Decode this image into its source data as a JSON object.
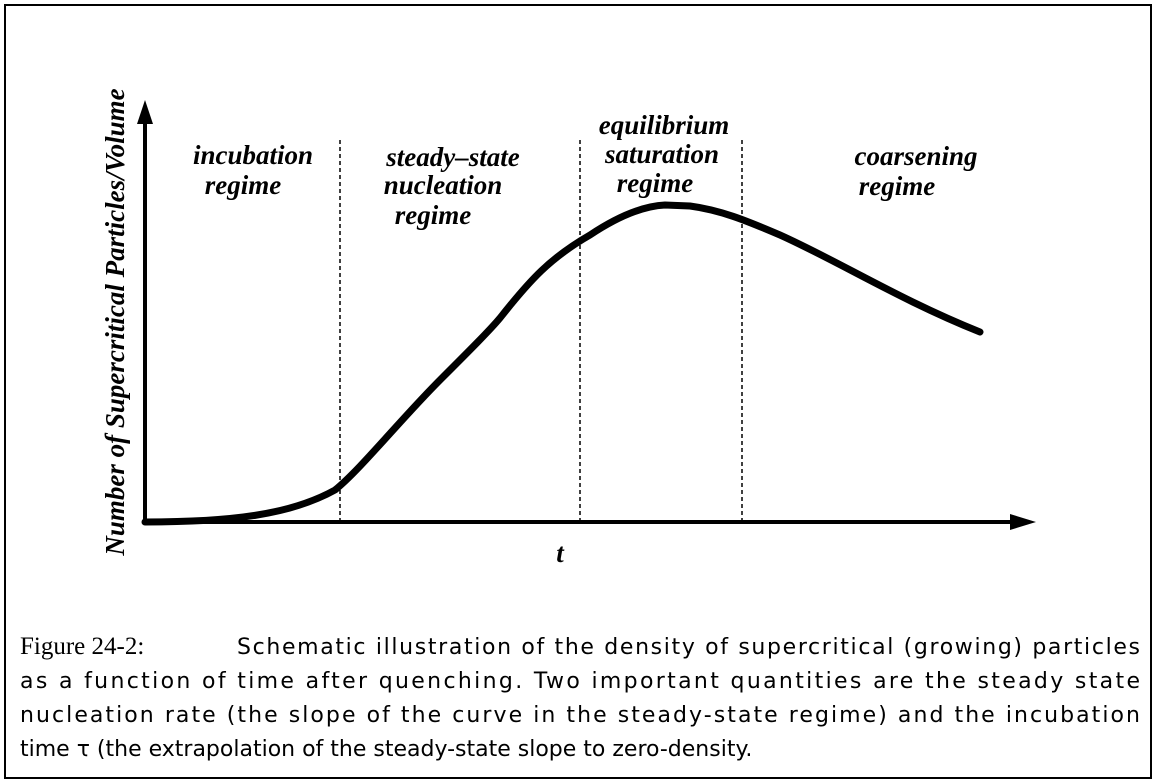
{
  "figure": {
    "y_axis_label": "Number of Supercritical Particles/Volume",
    "x_axis_label": "t",
    "regions": [
      {
        "lines": [
          "incubation",
          "regime"
        ]
      },
      {
        "lines": [
          "steady–state",
          "nucleation",
          "regime"
        ]
      },
      {
        "lines": [
          "equilibrium",
          "saturation",
          "regime"
        ]
      },
      {
        "lines": [
          "coarsening",
          "regime"
        ]
      }
    ]
  },
  "caption": {
    "label": "Figure 24-2:",
    "lines": [
      "Schematic illustration of the density of supercritical (growing) particles",
      "as a function of time after quenching. Two important quantities are the steady state",
      "nucleation rate (the slope of the curve in the steady-state regime) and the incubation",
      "time τ (the extrapolation of the steady-state slope to zero-density."
    ]
  }
}
